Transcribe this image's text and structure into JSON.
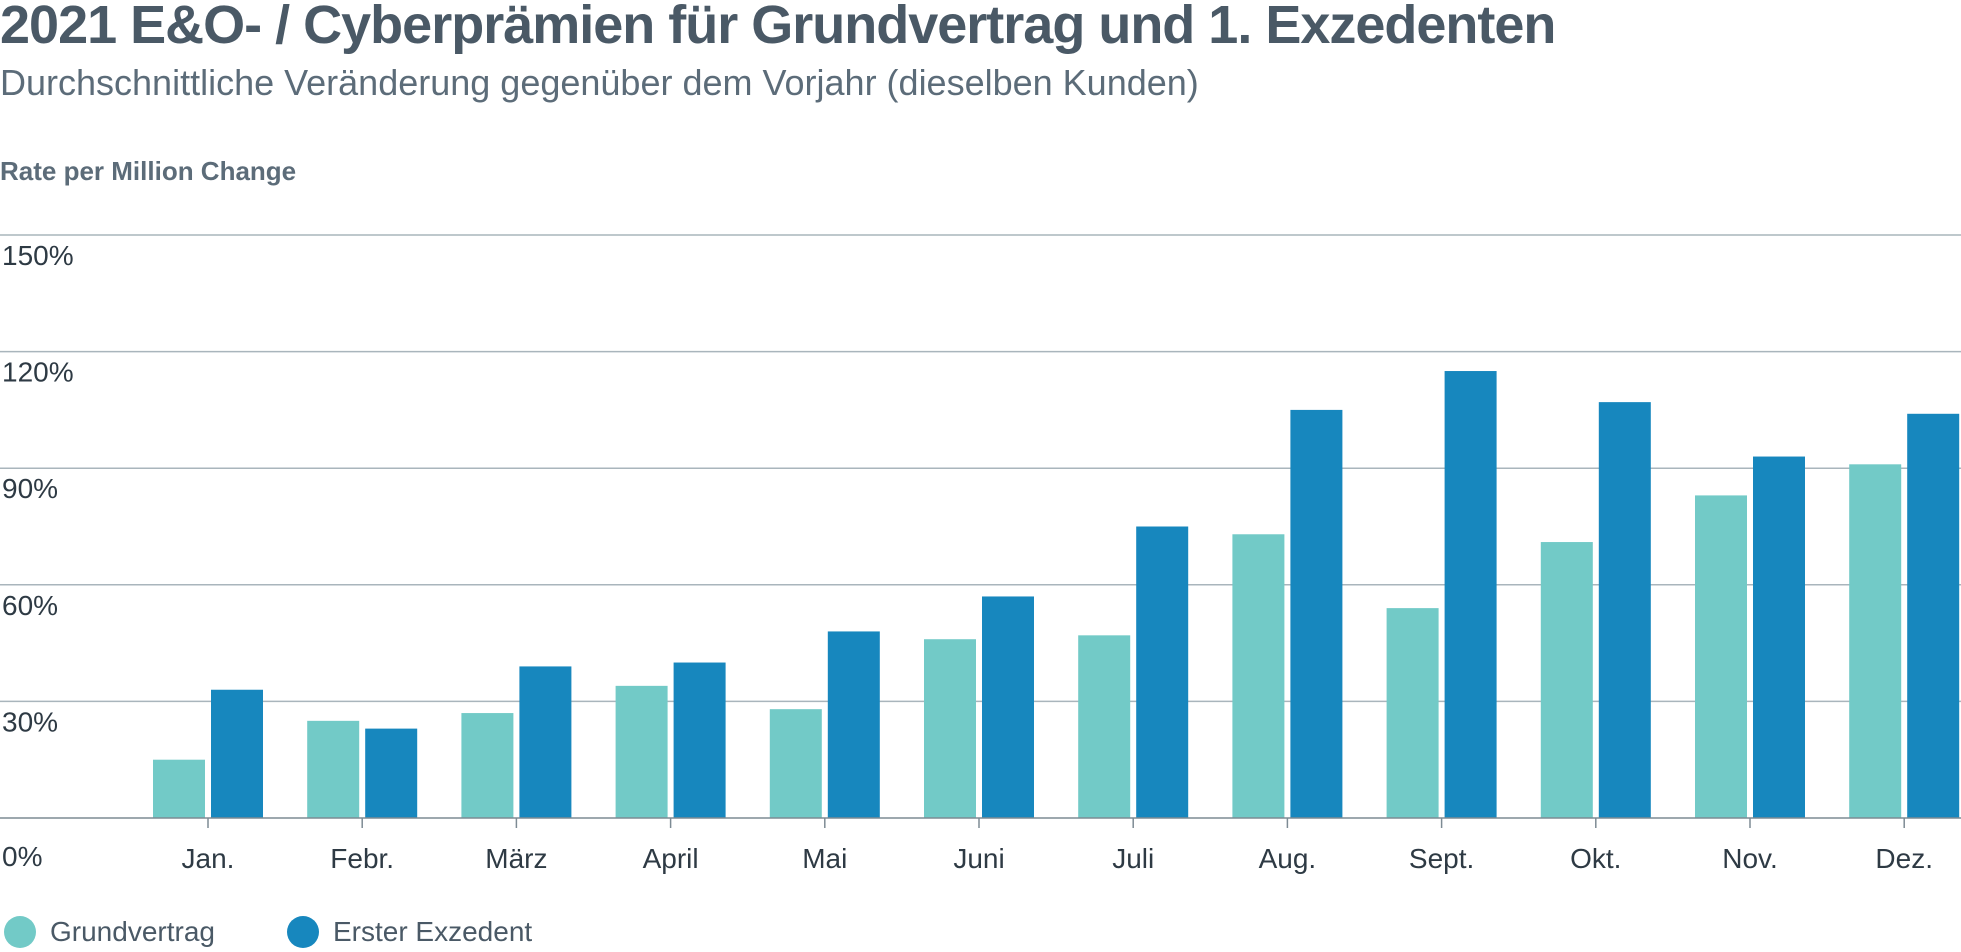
{
  "chart_data": {
    "type": "bar",
    "title": "2021 E&O- / Cyberprämien für Grundvertrag und 1. Exzedenten",
    "subtitle": "Durchschnittliche Veränderung gegenüber dem Vorjahr (dieselben Kunden)",
    "ylabel": "Rate per Million Change",
    "xlabel": "",
    "categories": [
      "Jan.",
      "Febr.",
      "März",
      "April",
      "Mai",
      "Juni",
      "Juli",
      "Aug.",
      "Sept.",
      "Okt.",
      "Nov.",
      "Dez."
    ],
    "yticks": [
      0,
      30,
      60,
      90,
      120,
      150
    ],
    "ytick_labels": [
      "0%",
      "30%",
      "60%",
      "90%",
      "120%",
      "150%"
    ],
    "ylim": [
      0,
      150
    ],
    "grid": true,
    "legend_position": "bottom-left",
    "series": [
      {
        "name": "Grundvertrag",
        "color": "#72cac7",
        "values": [
          15,
          25,
          27,
          34,
          28,
          46,
          47,
          73,
          54,
          71,
          83,
          91
        ]
      },
      {
        "name": "Erster Exzedent",
        "color": "#1787be",
        "values": [
          33,
          23,
          39,
          40,
          48,
          57,
          75,
          105,
          115,
          107,
          93,
          104
        ]
      }
    ]
  }
}
